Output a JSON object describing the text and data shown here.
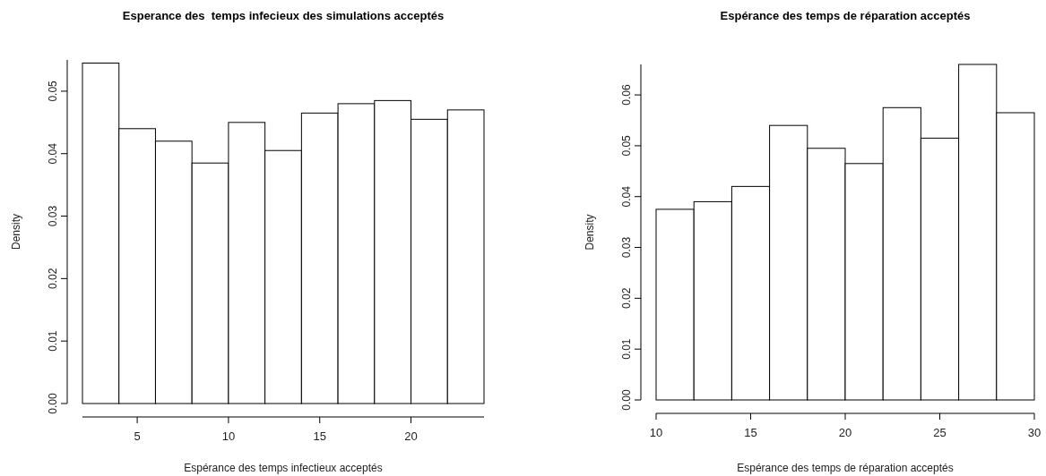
{
  "chart_data": [
    {
      "type": "histogram",
      "title": "Esperance des  temps infecieux des simulations acceptés",
      "xlabel": "Espérance des temps infectieux acceptés",
      "ylabel": "Density",
      "bins": [
        2,
        4,
        6,
        8,
        10,
        12,
        14,
        16,
        18,
        20,
        22,
        24
      ],
      "values": [
        0.0545,
        0.044,
        0.042,
        0.0385,
        0.045,
        0.0405,
        0.0465,
        0.048,
        0.0485,
        0.0455,
        0.047
      ],
      "color": "#ffffff",
      "xlim": [
        2,
        24
      ],
      "ylim": [
        0,
        0.055
      ],
      "xticks": [
        5,
        10,
        15,
        20
      ],
      "yticks": [
        {
          "value": 0,
          "label": "0.00"
        },
        {
          "value": 0.01,
          "label": "0.01"
        },
        {
          "value": 0.02,
          "label": "0.02"
        },
        {
          "value": 0.03,
          "label": "0.03"
        },
        {
          "value": 0.04,
          "label": "0.04"
        },
        {
          "value": 0.05,
          "label": "0.05"
        }
      ]
    },
    {
      "type": "histogram",
      "title": "Espérance des temps de réparation acceptés",
      "xlabel": "Espérance des temps de réparation acceptés",
      "ylabel": "Density",
      "bins": [
        10,
        12,
        14,
        16,
        18,
        20,
        22,
        24,
        26,
        28,
        30
      ],
      "values": [
        0.0375,
        0.039,
        0.042,
        0.054,
        0.0495,
        0.0465,
        0.0575,
        0.0515,
        0.066,
        0.0565
      ],
      "color": "#ffffff",
      "xlim": [
        10,
        30
      ],
      "ylim": [
        0,
        0.066
      ],
      "xticks": [
        10,
        15,
        20,
        25,
        30
      ],
      "yticks": [
        {
          "value": 0,
          "label": "0.00"
        },
        {
          "value": 0.01,
          "label": "0.01"
        },
        {
          "value": 0.02,
          "label": "0.02"
        },
        {
          "value": 0.03,
          "label": "0.03"
        },
        {
          "value": 0.04,
          "label": "0.04"
        },
        {
          "value": 0.05,
          "label": "0.05"
        },
        {
          "value": 0.06,
          "label": "0.06"
        }
      ]
    }
  ]
}
